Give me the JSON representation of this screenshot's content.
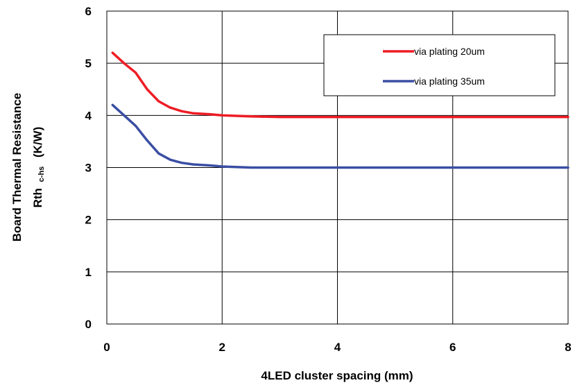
{
  "chart_data": {
    "type": "line",
    "title": "",
    "xlabel": "4LED cluster spacing (mm)",
    "ylabel_line1": "Board Thermal Resistance",
    "ylabel_line2_main": "Rth",
    "ylabel_line2_sub": "c-hs",
    "ylabel_line2_unit": "(K/W)",
    "xlim": [
      0,
      8
    ],
    "ylim": [
      0,
      6
    ],
    "x_ticks": [
      0,
      2,
      4,
      6,
      8
    ],
    "y_ticks": [
      0,
      1,
      2,
      3,
      4,
      5,
      6
    ],
    "x_tick_labels": [
      "0",
      "2",
      "4",
      "6",
      "8"
    ],
    "y_tick_labels": [
      "0",
      "1",
      "2",
      "3",
      "4",
      "5",
      "6"
    ],
    "grid": true,
    "legend_position": "top-right",
    "series": [
      {
        "name": "via plating 20um",
        "color": "#ee1c25",
        "x": [
          0.1,
          0.3,
          0.5,
          0.7,
          0.9,
          1.1,
          1.3,
          1.5,
          1.8,
          2.0,
          2.5,
          3.0,
          4.0,
          5.0,
          6.0,
          7.0,
          8.0
        ],
        "y": [
          5.2,
          5.0,
          4.82,
          4.5,
          4.27,
          4.15,
          4.08,
          4.04,
          4.02,
          4.0,
          3.98,
          3.97,
          3.97,
          3.97,
          3.97,
          3.97,
          3.97
        ]
      },
      {
        "name": "via plating 35um",
        "color": "#3a4ea3",
        "x": [
          0.1,
          0.3,
          0.5,
          0.7,
          0.9,
          1.1,
          1.3,
          1.5,
          1.8,
          2.0,
          2.5,
          3.0,
          4.0,
          5.0,
          6.0,
          7.0,
          8.0
        ],
        "y": [
          4.2,
          4.0,
          3.8,
          3.52,
          3.27,
          3.15,
          3.09,
          3.06,
          3.04,
          3.02,
          3.0,
          3.0,
          3.0,
          3.0,
          3.0,
          3.0,
          3.0
        ]
      }
    ]
  }
}
